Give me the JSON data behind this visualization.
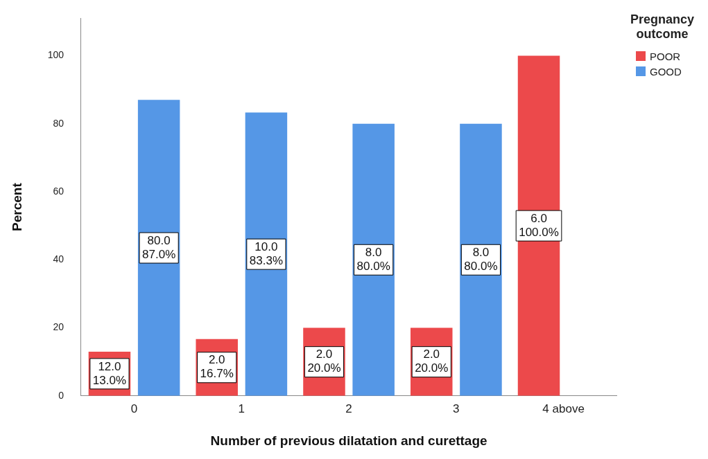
{
  "chart_data": {
    "type": "bar",
    "xlabel": "Number of previous dilatation and curettage",
    "ylabel": "Percent",
    "legend_title": "Pregnancy outcome",
    "legend": "top right",
    "grid": false,
    "categories": [
      "0",
      "1",
      "2",
      "3",
      "4 above"
    ],
    "ylim": [
      0,
      111
    ],
    "yticks": [
      0,
      20,
      40,
      60,
      80,
      100
    ],
    "series": [
      {
        "name": "POOR",
        "color": "#ec494b",
        "values": [
          13.0,
          16.7,
          20.0,
          20.0,
          100.0
        ],
        "value_labels": [
          "12.0\n13.0%",
          "2.0\n16.7%",
          "2.0\n20.0%",
          "2.0\n20.0%",
          "6.0\n100.0%"
        ]
      },
      {
        "name": "GOOD",
        "color": "#5597e6",
        "values": [
          87.0,
          83.3,
          80.0,
          80.0,
          null
        ],
        "value_labels": [
          "80.0\n87.0%",
          "10.0\n83.3%",
          "8.0\n80.0%",
          "8.0\n80.0%",
          null
        ]
      }
    ]
  }
}
